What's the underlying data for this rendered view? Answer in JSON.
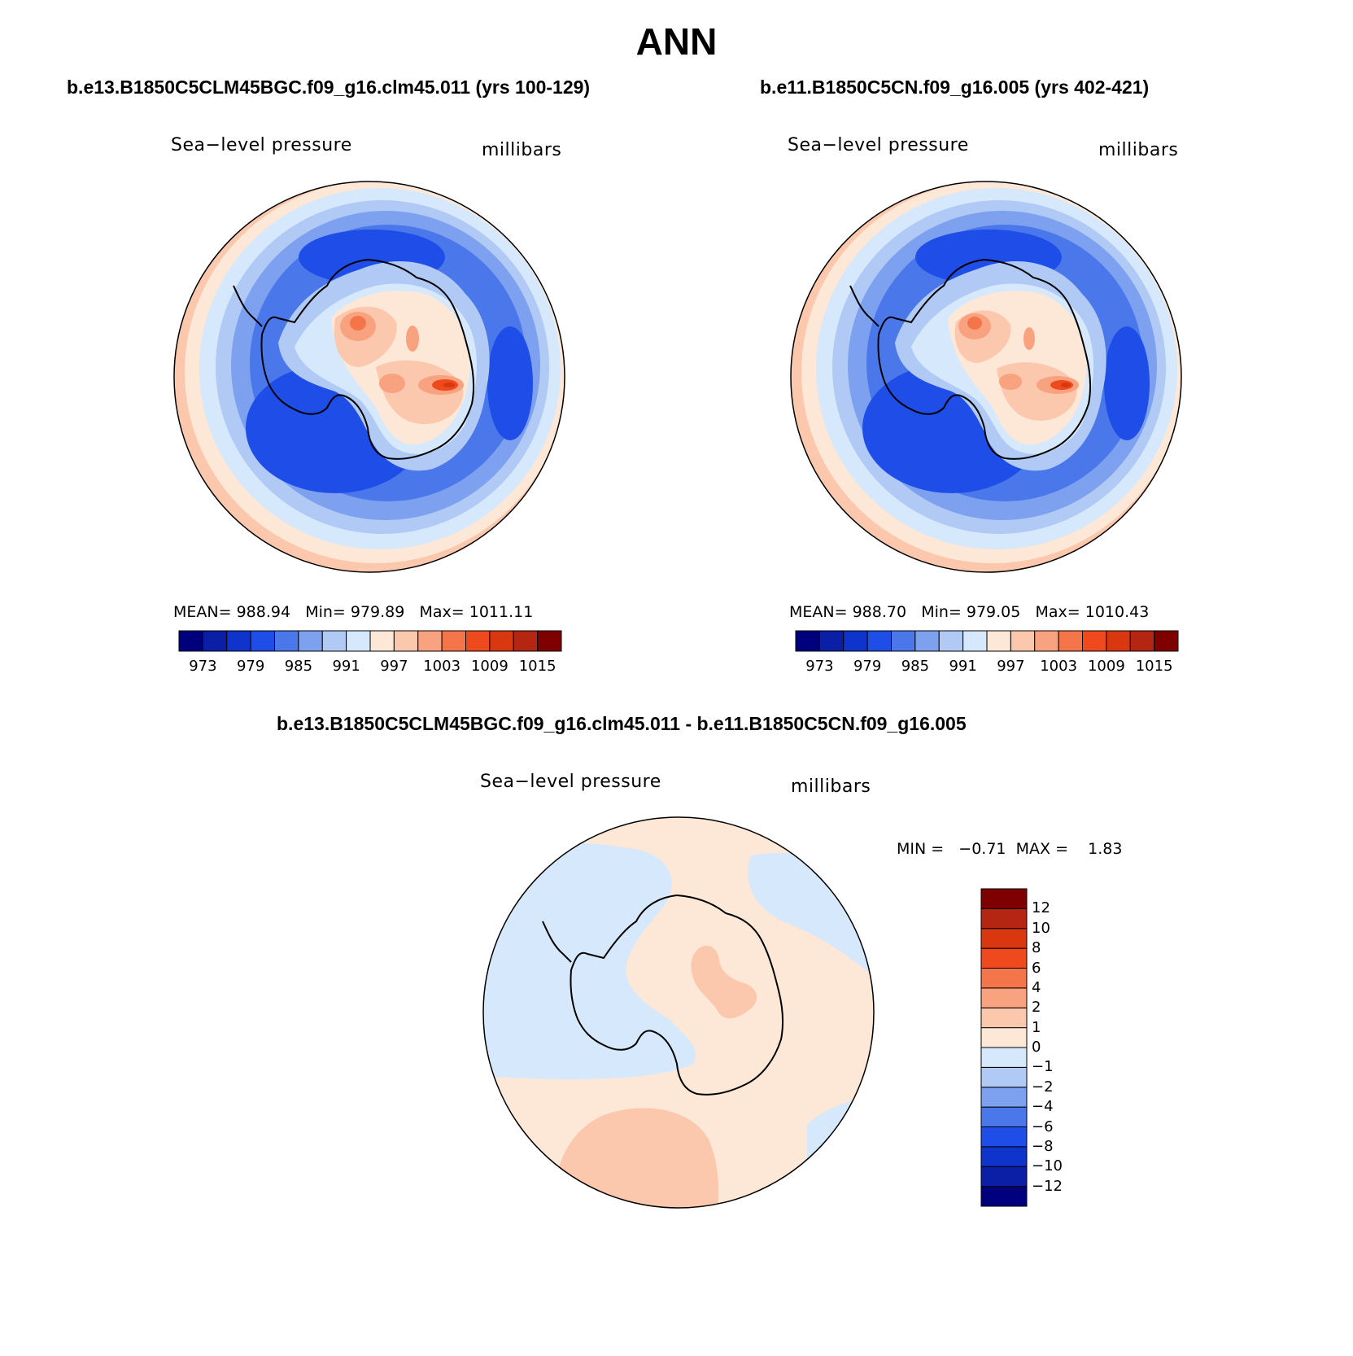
{
  "figure_title": "ANN",
  "panels": [
    {
      "case": "b.e13.B1850C5CLM45BGC.f09_g16.clm45.011 (yrs 100-129)",
      "variable": "Sea−level pressure",
      "units": "millibars",
      "stats": {
        "mean_label": "MEAN=",
        "mean": "988.94",
        "min_label": "Min=",
        "min": "979.89",
        "max_label": "Max=",
        "max": "1011.11"
      }
    },
    {
      "case": "b.e11.B1850C5CN.f09_g16.005 (yrs 402-421)",
      "variable": "Sea−level pressure",
      "units": "millibars",
      "stats": {
        "mean_label": "MEAN=",
        "mean": "988.70",
        "min_label": "Min=",
        "min": "979.05",
        "max_label": "Max=",
        "max": "1010.43"
      }
    }
  ],
  "diff_panel": {
    "case": "b.e13.B1850C5CLM45BGC.f09_g16.clm45.011 - b.e11.B1850C5CN.f09_g16.005",
    "variable": "Sea−level pressure",
    "units": "millibars",
    "stats": {
      "min_label": "MIN =",
      "min": "−0.71",
      "max_label": "MAX =",
      "max": "1.83"
    }
  },
  "abs_colorbar": {
    "colors": [
      "#00007f",
      "#0a1fa6",
      "#0f34cc",
      "#1e4de8",
      "#4a78ea",
      "#7da1ef",
      "#b0c9f5",
      "#d6e8fb",
      "#fde7d7",
      "#fbc8ae",
      "#f8a27f",
      "#f4754a",
      "#ee4a1d",
      "#d8370f",
      "#b42512",
      "#7f0000"
    ],
    "ticks": [
      "973",
      "979",
      "985",
      "991",
      "997",
      "1003",
      "1009",
      "1015"
    ]
  },
  "diff_colorbar": {
    "colors": [
      "#00007f",
      "#0a1fa6",
      "#0f34cc",
      "#1e4de8",
      "#4a78ea",
      "#7da1ef",
      "#b0c9f5",
      "#d6e8fb",
      "#fde7d7",
      "#fbc8ae",
      "#f8a27f",
      "#f4754a",
      "#ee4a1d",
      "#d8370f",
      "#b42512",
      "#7f0000"
    ],
    "ticks": [
      "−12",
      "−10",
      "−8",
      "−6",
      "−4",
      "−2",
      "−1",
      "0",
      "1",
      "2",
      "4",
      "6",
      "8",
      "10",
      "12"
    ]
  }
}
